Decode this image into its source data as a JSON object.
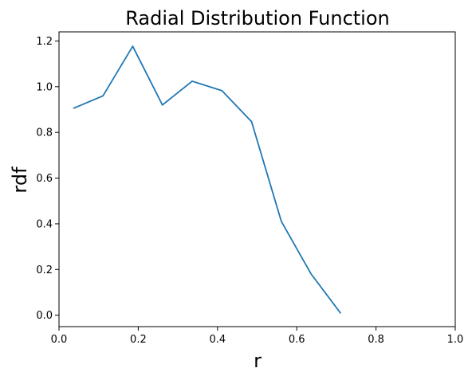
{
  "chart_data": {
    "type": "line",
    "title": "Radial Distribution Function",
    "xlabel": "r",
    "ylabel": "rdf",
    "xlim": [
      0.0,
      1.0
    ],
    "ylim": [
      -0.05,
      1.24
    ],
    "xticks": [
      "0.0",
      "0.2",
      "0.4",
      "0.6",
      "0.8",
      "1.0"
    ],
    "yticks": [
      "0.0",
      "0.2",
      "0.4",
      "0.6",
      "0.8",
      "1.0",
      "1.2"
    ],
    "grid": false,
    "series": [
      {
        "color": "#1f77b4",
        "x": [
          0.036,
          0.111,
          0.186,
          0.261,
          0.336,
          0.411,
          0.486,
          0.561,
          0.636,
          0.711
        ],
        "y": [
          0.905,
          0.96,
          1.177,
          0.92,
          1.024,
          0.983,
          0.847,
          0.411,
          0.181,
          0.008
        ]
      }
    ]
  }
}
